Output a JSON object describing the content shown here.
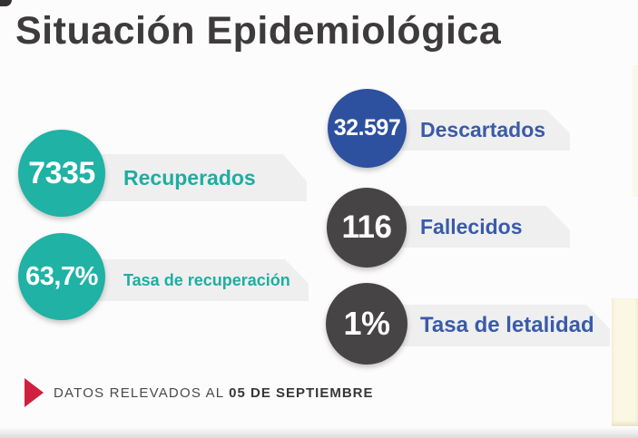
{
  "title": "Situación Epidemiológica",
  "stats": [
    {
      "value": "7335",
      "label": "Recuperados"
    },
    {
      "value": "63,7%",
      "label": "Tasa de recuperación"
    },
    {
      "value": "32.597",
      "label": "Descartados"
    },
    {
      "value": "116",
      "label": "Fallecidos"
    },
    {
      "value": "1%",
      "label": "Tasa de letalidad"
    }
  ],
  "footer": {
    "prefix": "DATOS RELEVADOS AL ",
    "date": "05 DE SEPTIEMBRE"
  },
  "colors": {
    "teal": "#1fb2a5",
    "blue": "#2d509f",
    "dark_gray": "#464444",
    "banner_gray": "#efeff0",
    "label_teal": "#1fada1",
    "label_blue": "#3a5ba8",
    "title_gray": "#3d3b3c",
    "accent_red": "#d01f41",
    "background": "#fdfcfc",
    "right_strip_cream": "#fbf7e2"
  },
  "icons": {
    "footer_marker": "red-play-triangle"
  },
  "chart_data": {
    "type": "table",
    "title": "Situación Epidemiológica",
    "categories": [
      "Recuperados",
      "Tasa de recuperación",
      "Descartados",
      "Fallecidos",
      "Tasa de letalidad"
    ],
    "values": [
      7335,
      63.7,
      32597,
      116,
      1
    ],
    "value_labels": [
      "7335",
      "63,7%",
      "32.597",
      "116",
      "1%"
    ],
    "annotation": "DATOS RELEVADOS AL 05 DE SEPTIEMBRE",
    "legend_position": "none",
    "grid": false
  }
}
